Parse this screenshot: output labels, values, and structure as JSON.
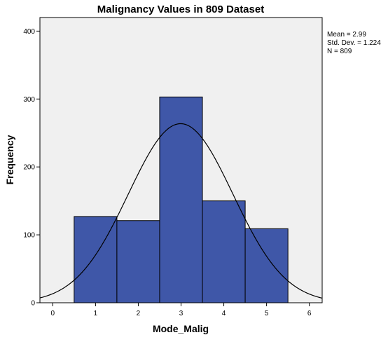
{
  "chart_data": {
    "type": "bar",
    "title": "Malignancy Values in 809 Dataset",
    "xlabel": "Mode_Malig",
    "ylabel": "Frequency",
    "bins": [
      {
        "center": 1,
        "start": 0.5,
        "end": 1.5,
        "value": 127
      },
      {
        "center": 2,
        "start": 1.5,
        "end": 2.5,
        "value": 121
      },
      {
        "center": 3,
        "start": 2.5,
        "end": 3.5,
        "value": 303
      },
      {
        "center": 4,
        "start": 3.5,
        "end": 4.5,
        "value": 150
      },
      {
        "center": 5,
        "start": 4.5,
        "end": 5.5,
        "value": 109
      }
    ],
    "xlim": [
      -0.3,
      6.3
    ],
    "ylim": [
      0,
      420
    ],
    "x_ticks": [
      0,
      1,
      2,
      3,
      4,
      5,
      6
    ],
    "y_ticks": [
      0,
      100,
      200,
      300,
      400
    ],
    "normal_curve": {
      "mean": 2.99,
      "sd": 1.224,
      "n": 809,
      "bin_width": 1
    },
    "stats": [
      "Mean = 2.99",
      "Std. Dev. = 1.224",
      "N = 809"
    ],
    "colors": {
      "bar_fill": "#3f57a8",
      "bar_stroke": "#000000",
      "plot_bg": "#f0f0f0",
      "curve": "#000000"
    },
    "grid": false
  }
}
